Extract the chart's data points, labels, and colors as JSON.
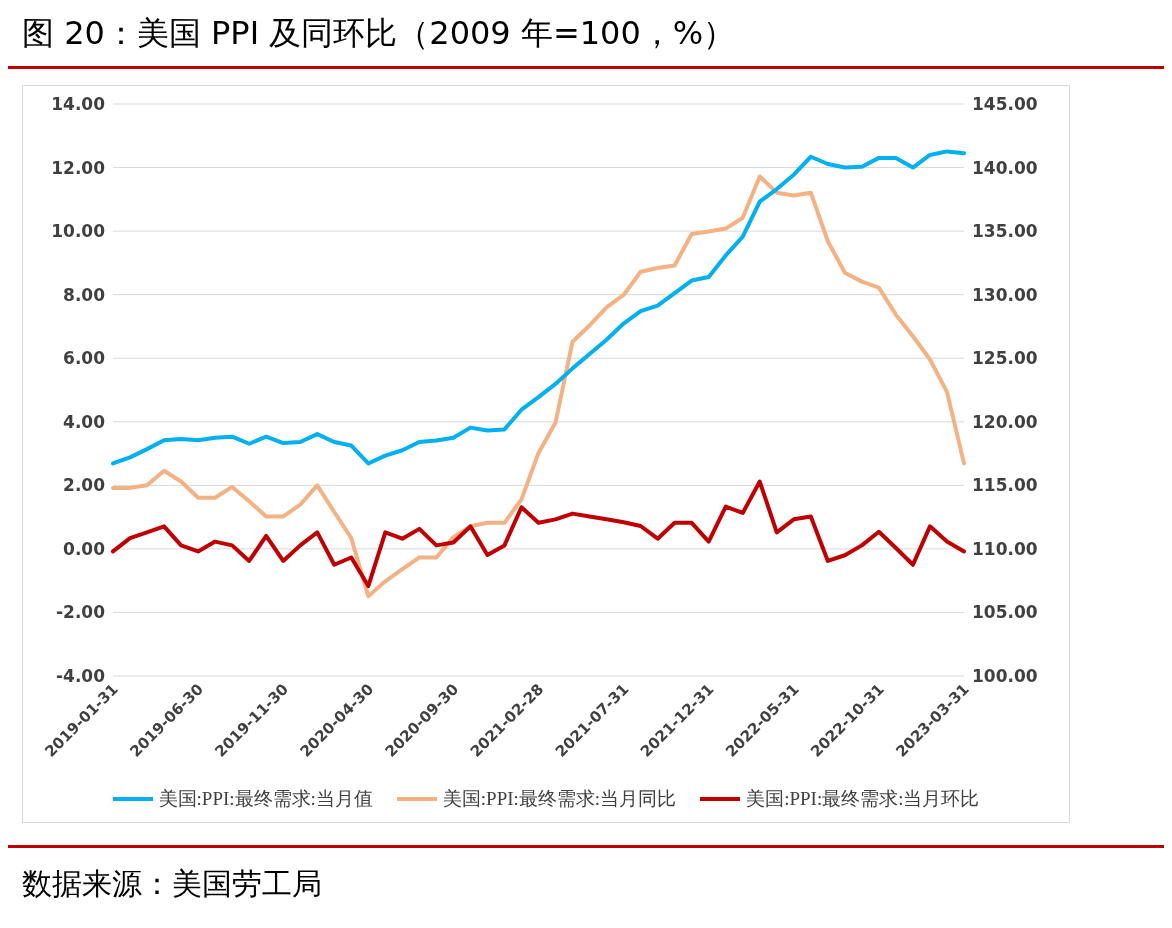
{
  "chart_data": {
    "type": "line",
    "title": "图 20：美国 PPI 及同环比（2009 年=100，%）",
    "categories": [
      "2019-01-31",
      null,
      null,
      null,
      null,
      "2019-06-30",
      null,
      null,
      null,
      null,
      "2019-11-30",
      null,
      null,
      null,
      null,
      "2020-04-30",
      null,
      null,
      null,
      null,
      "2020-09-30",
      null,
      null,
      null,
      null,
      "2021-02-28",
      null,
      null,
      null,
      null,
      "2021-07-31",
      null,
      null,
      null,
      null,
      "2021-12-31",
      null,
      null,
      null,
      null,
      "2022-05-31",
      null,
      null,
      null,
      null,
      "2022-10-31",
      null,
      null,
      null,
      null,
      "2023-03-31"
    ],
    "series": [
      {
        "name": "美国:PPI:最终需求:当月同比",
        "color": "#f4b183",
        "values": [
          1.92,
          1.92,
          2.0,
          2.46,
          2.12,
          1.61,
          1.61,
          1.95,
          1.5,
          1.02,
          1.02,
          1.39,
          2.0,
          1.16,
          0.34,
          -1.49,
          -1.02,
          -0.64,
          -0.27,
          -0.27,
          0.37,
          0.71,
          0.82,
          0.82,
          1.56,
          3.02,
          3.98,
          6.52,
          7.03,
          7.6,
          7.99,
          8.72,
          8.84,
          8.92,
          9.91,
          9.99,
          10.08,
          10.42,
          11.72,
          11.21,
          11.12,
          11.21,
          9.68,
          8.69,
          8.41,
          8.22,
          7.37,
          6.69,
          5.96,
          4.94,
          2.69
        ]
      },
      {
        "name": "美国:PPI:最终需求:当月环比",
        "color": "#c00000",
        "values": [
          -0.08,
          0.34,
          0.52,
          0.71,
          0.11,
          -0.08,
          0.23,
          0.11,
          -0.38,
          0.41,
          -0.38,
          0.11,
          0.52,
          -0.5,
          -0.27,
          -1.17,
          0.52,
          0.32,
          0.63,
          0.11,
          0.2,
          0.71,
          -0.19,
          0.11,
          1.31,
          0.82,
          0.93,
          1.11,
          1.02,
          0.93,
          0.84,
          0.72,
          0.32,
          0.82,
          0.82,
          0.23,
          1.33,
          1.13,
          2.12,
          0.52,
          0.93,
          1.02,
          -0.38,
          -0.2,
          0.11,
          0.54,
          0.03,
          -0.5,
          0.71,
          0.23,
          -0.08
        ]
      },
      {
        "name": "美国:PPI:最终需求:当月值",
        "color": "#00b0f0",
        "axis": "y2",
        "values": [
          116.72,
          117.2,
          117.85,
          118.55,
          118.64,
          118.55,
          118.75,
          118.83,
          118.27,
          118.83,
          118.33,
          118.41,
          119.03,
          118.41,
          118.13,
          116.72,
          117.34,
          117.76,
          118.41,
          118.52,
          118.75,
          119.54,
          119.31,
          119.4,
          120.95,
          121.94,
          122.98,
          124.2,
          125.33,
          126.45,
          127.73,
          128.71,
          129.14,
          130.12,
          131.11,
          131.39,
          133.09,
          134.56,
          137.32,
          138.31,
          139.44,
          140.85,
          140.28,
          140.0,
          140.06,
          140.76,
          140.76,
          140.0,
          140.99,
          141.27,
          141.13
        ]
      }
    ],
    "ylim": [
      -4,
      14
    ],
    "yticks": [
      {
        "value": -4,
        "label": "-4.00"
      },
      {
        "value": -2,
        "label": "-2.00"
      },
      {
        "value": 0,
        "label": "0.00"
      },
      {
        "value": 2,
        "label": "2.00"
      },
      {
        "value": 4,
        "label": "4.00"
      },
      {
        "value": 6,
        "label": "6.00"
      },
      {
        "value": 8,
        "label": "8.00"
      },
      {
        "value": 10,
        "label": "10.00"
      },
      {
        "value": 12,
        "label": "12.00"
      },
      {
        "value": 14,
        "label": "14.00"
      }
    ],
    "y2lim": [
      100,
      145
    ],
    "y2ticks": [
      {
        "value": 100,
        "label": "100.00"
      },
      {
        "value": 105,
        "label": "105.00"
      },
      {
        "value": 110,
        "label": "110.00"
      },
      {
        "value": 115,
        "label": "115.00"
      },
      {
        "value": 120,
        "label": "120.00"
      },
      {
        "value": 125,
        "label": "125.00"
      },
      {
        "value": 130,
        "label": "130.00"
      },
      {
        "value": 135,
        "label": "135.00"
      },
      {
        "value": 140,
        "label": "140.00"
      },
      {
        "value": 145,
        "label": "145.00"
      }
    ],
    "grid": "y",
    "legend": "bottom",
    "marker": "none",
    "line_style": "solid",
    "annotations": [
      "数据来源：美国劳工局"
    ]
  }
}
